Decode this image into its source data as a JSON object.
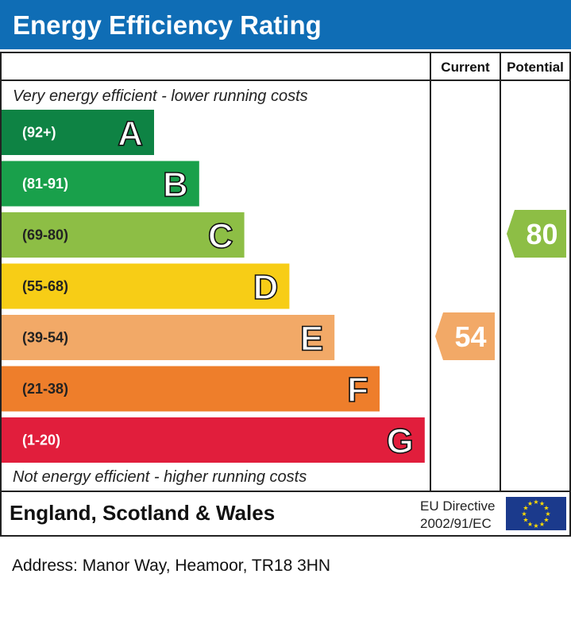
{
  "chart_data": {
    "type": "bar",
    "title": "Energy Efficiency Rating",
    "columns": {
      "current": "Current",
      "potential": "Potential"
    },
    "top_note": "Very energy efficient - lower running costs",
    "bottom_note": "Not energy efficient - higher running costs",
    "bands": [
      {
        "letter": "A",
        "range": "(92+)",
        "color": "#0e8344"
      },
      {
        "letter": "B",
        "range": "(81-91)",
        "color": "#19a04b"
      },
      {
        "letter": "C",
        "range": "(69-80)",
        "color": "#8dbe45"
      },
      {
        "letter": "D",
        "range": "(55-68)",
        "color": "#f7cd16"
      },
      {
        "letter": "E",
        "range": "(39-54)",
        "color": "#f2a967"
      },
      {
        "letter": "F",
        "range": "(21-38)",
        "color": "#ee7e2b"
      },
      {
        "letter": "G",
        "range": "(1-20)",
        "color": "#e11e3c"
      }
    ],
    "current": {
      "value": 54,
      "band": "E",
      "color": "#f2a967"
    },
    "potential": {
      "value": 80,
      "band": "C",
      "color": "#8dbe45"
    },
    "region": "England, Scotland & Wales",
    "directive": [
      "EU Directive",
      "2002/91/EC"
    ],
    "title_color": "#0f6db5"
  },
  "address": "Address: Manor Way, Heamoor, TR18 3HN"
}
